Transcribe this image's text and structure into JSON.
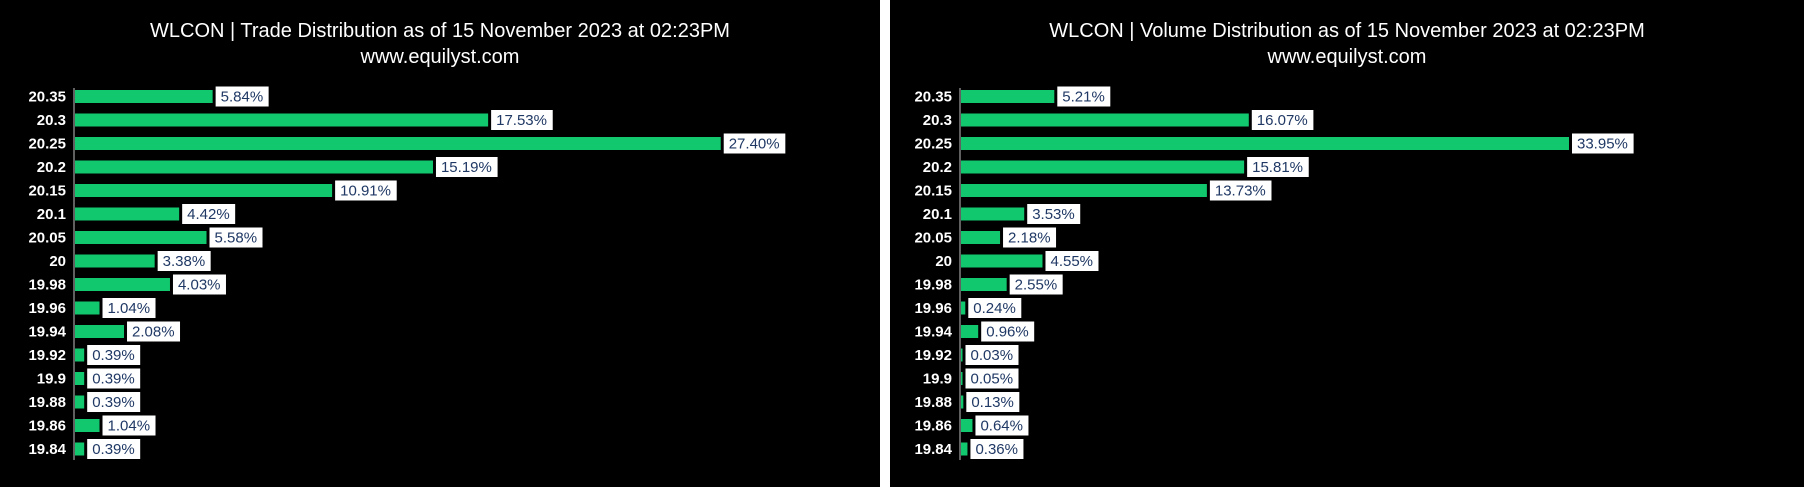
{
  "colors": {
    "bar": "#12c86e",
    "background": "#000000",
    "label_box": "#ffffff",
    "label_text": "#1f3864"
  },
  "chart_data": [
    {
      "type": "bar",
      "orientation": "horizontal",
      "title": "WLCON | Trade Distribution as of 15 November 2023 at 02:23PM",
      "subtitle": "www.equilyst.com",
      "categories": [
        "20.35",
        "20.3",
        "20.25",
        "20.2",
        "20.15",
        "20.1",
        "20.05",
        "20",
        "19.98",
        "19.96",
        "19.94",
        "19.92",
        "19.9",
        "19.88",
        "19.86",
        "19.84"
      ],
      "values": [
        5.84,
        17.53,
        27.4,
        15.19,
        10.91,
        4.42,
        5.58,
        3.38,
        4.03,
        1.04,
        2.08,
        0.39,
        0.39,
        0.39,
        1.04,
        0.39
      ],
      "labels": [
        "5.84%",
        "17.53%",
        "27.40%",
        "15.19%",
        "10.91%",
        "4.42%",
        "5.58%",
        "3.38%",
        "4.03%",
        "1.04%",
        "2.08%",
        "0.39%",
        "0.39%",
        "0.39%",
        "1.04%",
        "0.39%"
      ],
      "xlim": [
        0,
        30
      ],
      "grid": false,
      "legend": "none"
    },
    {
      "type": "bar",
      "orientation": "horizontal",
      "title": "WLCON | Volume Distribution as of 15 November 2023 at 02:23PM",
      "subtitle": "www.equilyst.com",
      "categories": [
        "20.35",
        "20.3",
        "20.25",
        "20.2",
        "20.15",
        "20.1",
        "20.05",
        "20",
        "19.98",
        "19.96",
        "19.94",
        "19.92",
        "19.9",
        "19.88",
        "19.86",
        "19.84"
      ],
      "values": [
        5.21,
        16.07,
        33.95,
        15.81,
        13.73,
        3.53,
        2.18,
        4.55,
        2.55,
        0.24,
        0.96,
        0.03,
        0.05,
        0.13,
        0.64,
        0.36
      ],
      "labels": [
        "5.21%",
        "16.07%",
        "33.95%",
        "15.81%",
        "13.73%",
        "3.53%",
        "2.18%",
        "4.55%",
        "2.55%",
        "0.24%",
        "0.96%",
        "0.03%",
        "0.05%",
        "0.13%",
        "0.64%",
        "0.36%"
      ],
      "xlim": [
        0,
        36
      ],
      "grid": false,
      "legend": "none"
    }
  ]
}
